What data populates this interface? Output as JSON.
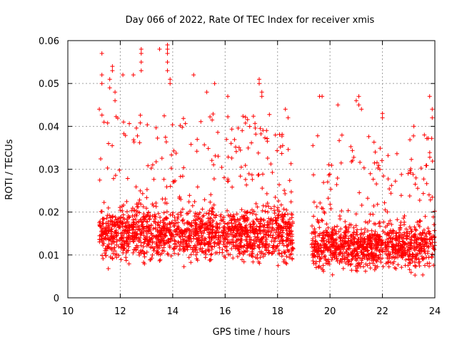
{
  "chart_data": {
    "type": "scatter",
    "title": "Day 066 of 2022, Rate Of TEC Index for receiver xmis",
    "xlabel": "GPS time / hours",
    "ylabel": "ROTI / TECUs",
    "xlim": [
      10,
      24
    ],
    "ylim": [
      0,
      0.06
    ],
    "xticks": [
      10,
      12,
      14,
      16,
      18,
      20,
      22,
      24
    ],
    "yticks": [
      0,
      0.01,
      0.02,
      0.03,
      0.04,
      0.05,
      0.06
    ],
    "xtick_labels": [
      "10",
      "12",
      "14",
      "16",
      "18",
      "20",
      "22",
      "24"
    ],
    "ytick_labels": [
      "0",
      "0.01",
      "0.02",
      "0.03",
      "0.04",
      "0.05",
      "0.06"
    ],
    "grid": true,
    "marker": "+",
    "color": "#ff0000",
    "series": [
      {
        "name": "ROTI",
        "segments": [
          {
            "x_start": 11.2,
            "x_end": 18.6,
            "median": 0.015,
            "upper_envelope": 0.035,
            "peak": 0.059
          },
          {
            "x_start": 19.3,
            "x_end": 24.0,
            "median": 0.012,
            "upper_envelope": 0.03,
            "peak": 0.047
          }
        ],
        "points": [
          [
            11.3,
            0.057
          ],
          [
            11.3,
            0.052
          ],
          [
            11.3,
            0.05
          ],
          [
            11.2,
            0.044
          ],
          [
            11.6,
            0.051
          ],
          [
            11.6,
            0.049
          ],
          [
            11.7,
            0.054
          ],
          [
            11.7,
            0.053
          ],
          [
            11.8,
            0.048
          ],
          [
            11.8,
            0.046
          ],
          [
            12.1,
            0.052
          ],
          [
            12.5,
            0.052
          ],
          [
            12.8,
            0.058
          ],
          [
            12.8,
            0.057
          ],
          [
            12.8,
            0.055
          ],
          [
            12.8,
            0.053
          ],
          [
            13.5,
            0.058
          ],
          [
            13.8,
            0.059
          ],
          [
            13.8,
            0.058
          ],
          [
            13.8,
            0.057
          ],
          [
            13.8,
            0.055
          ],
          [
            13.8,
            0.053
          ],
          [
            13.9,
            0.051
          ],
          [
            13.9,
            0.05
          ],
          [
            14.8,
            0.052
          ],
          [
            15.3,
            0.048
          ],
          [
            15.6,
            0.05
          ],
          [
            16.1,
            0.047
          ],
          [
            17.3,
            0.051
          ],
          [
            17.3,
            0.05
          ],
          [
            17.4,
            0.048
          ],
          [
            17.4,
            0.047
          ],
          [
            18.3,
            0.044
          ],
          [
            18.4,
            0.042
          ],
          [
            19.6,
            0.047
          ],
          [
            19.7,
            0.047
          ],
          [
            20.3,
            0.045
          ],
          [
            21.0,
            0.046
          ],
          [
            21.1,
            0.047
          ],
          [
            21.1,
            0.045
          ],
          [
            21.2,
            0.044
          ],
          [
            22.0,
            0.043
          ],
          [
            22.0,
            0.042
          ],
          [
            23.8,
            0.047
          ],
          [
            23.9,
            0.044
          ],
          [
            23.9,
            0.042
          ],
          [
            23.6,
            0.038
          ],
          [
            23.2,
            0.04
          ]
        ]
      }
    ]
  }
}
